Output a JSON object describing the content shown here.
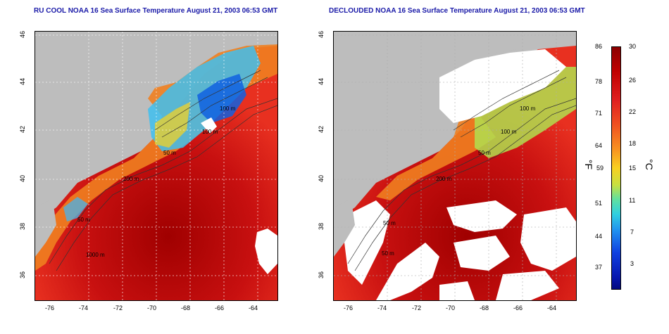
{
  "titles": {
    "left": "RU COOL NOAA 16 Sea Surface Temperature August 21, 2003 06:53 GMT",
    "right": "DECLOUDED NOAA 16 Sea Surface Temperature August 21, 2003 06:53 GMT"
  },
  "axes": {
    "x_ticks": [
      "-76",
      "-74",
      "-72",
      "-70",
      "-68",
      "-66",
      "-64"
    ],
    "y_ticks": [
      "46",
      "44",
      "42",
      "40",
      "38",
      "36"
    ]
  },
  "contour_labels": [
    "100 m",
    "100 m",
    "50 m",
    "50 m",
    "200 m",
    "50 m",
    "1000 m"
  ],
  "colorbar": {
    "fahrenheit_ticks": [
      "86",
      "78",
      "71",
      "64",
      "59",
      "51",
      "44",
      "37"
    ],
    "celsius_ticks": [
      "30",
      "26",
      "22",
      "18",
      "15",
      "11",
      "7",
      "3"
    ],
    "fahrenheit_unit": "°F",
    "celsius_unit": "°C"
  },
  "colors": {
    "land": "#bdbdbd",
    "cloud": "#ffffff",
    "warm": "#d41414",
    "hot": "#a00000",
    "mid": "#f08020",
    "cool": "#40c0f0",
    "title": "#1a1aa8"
  }
}
